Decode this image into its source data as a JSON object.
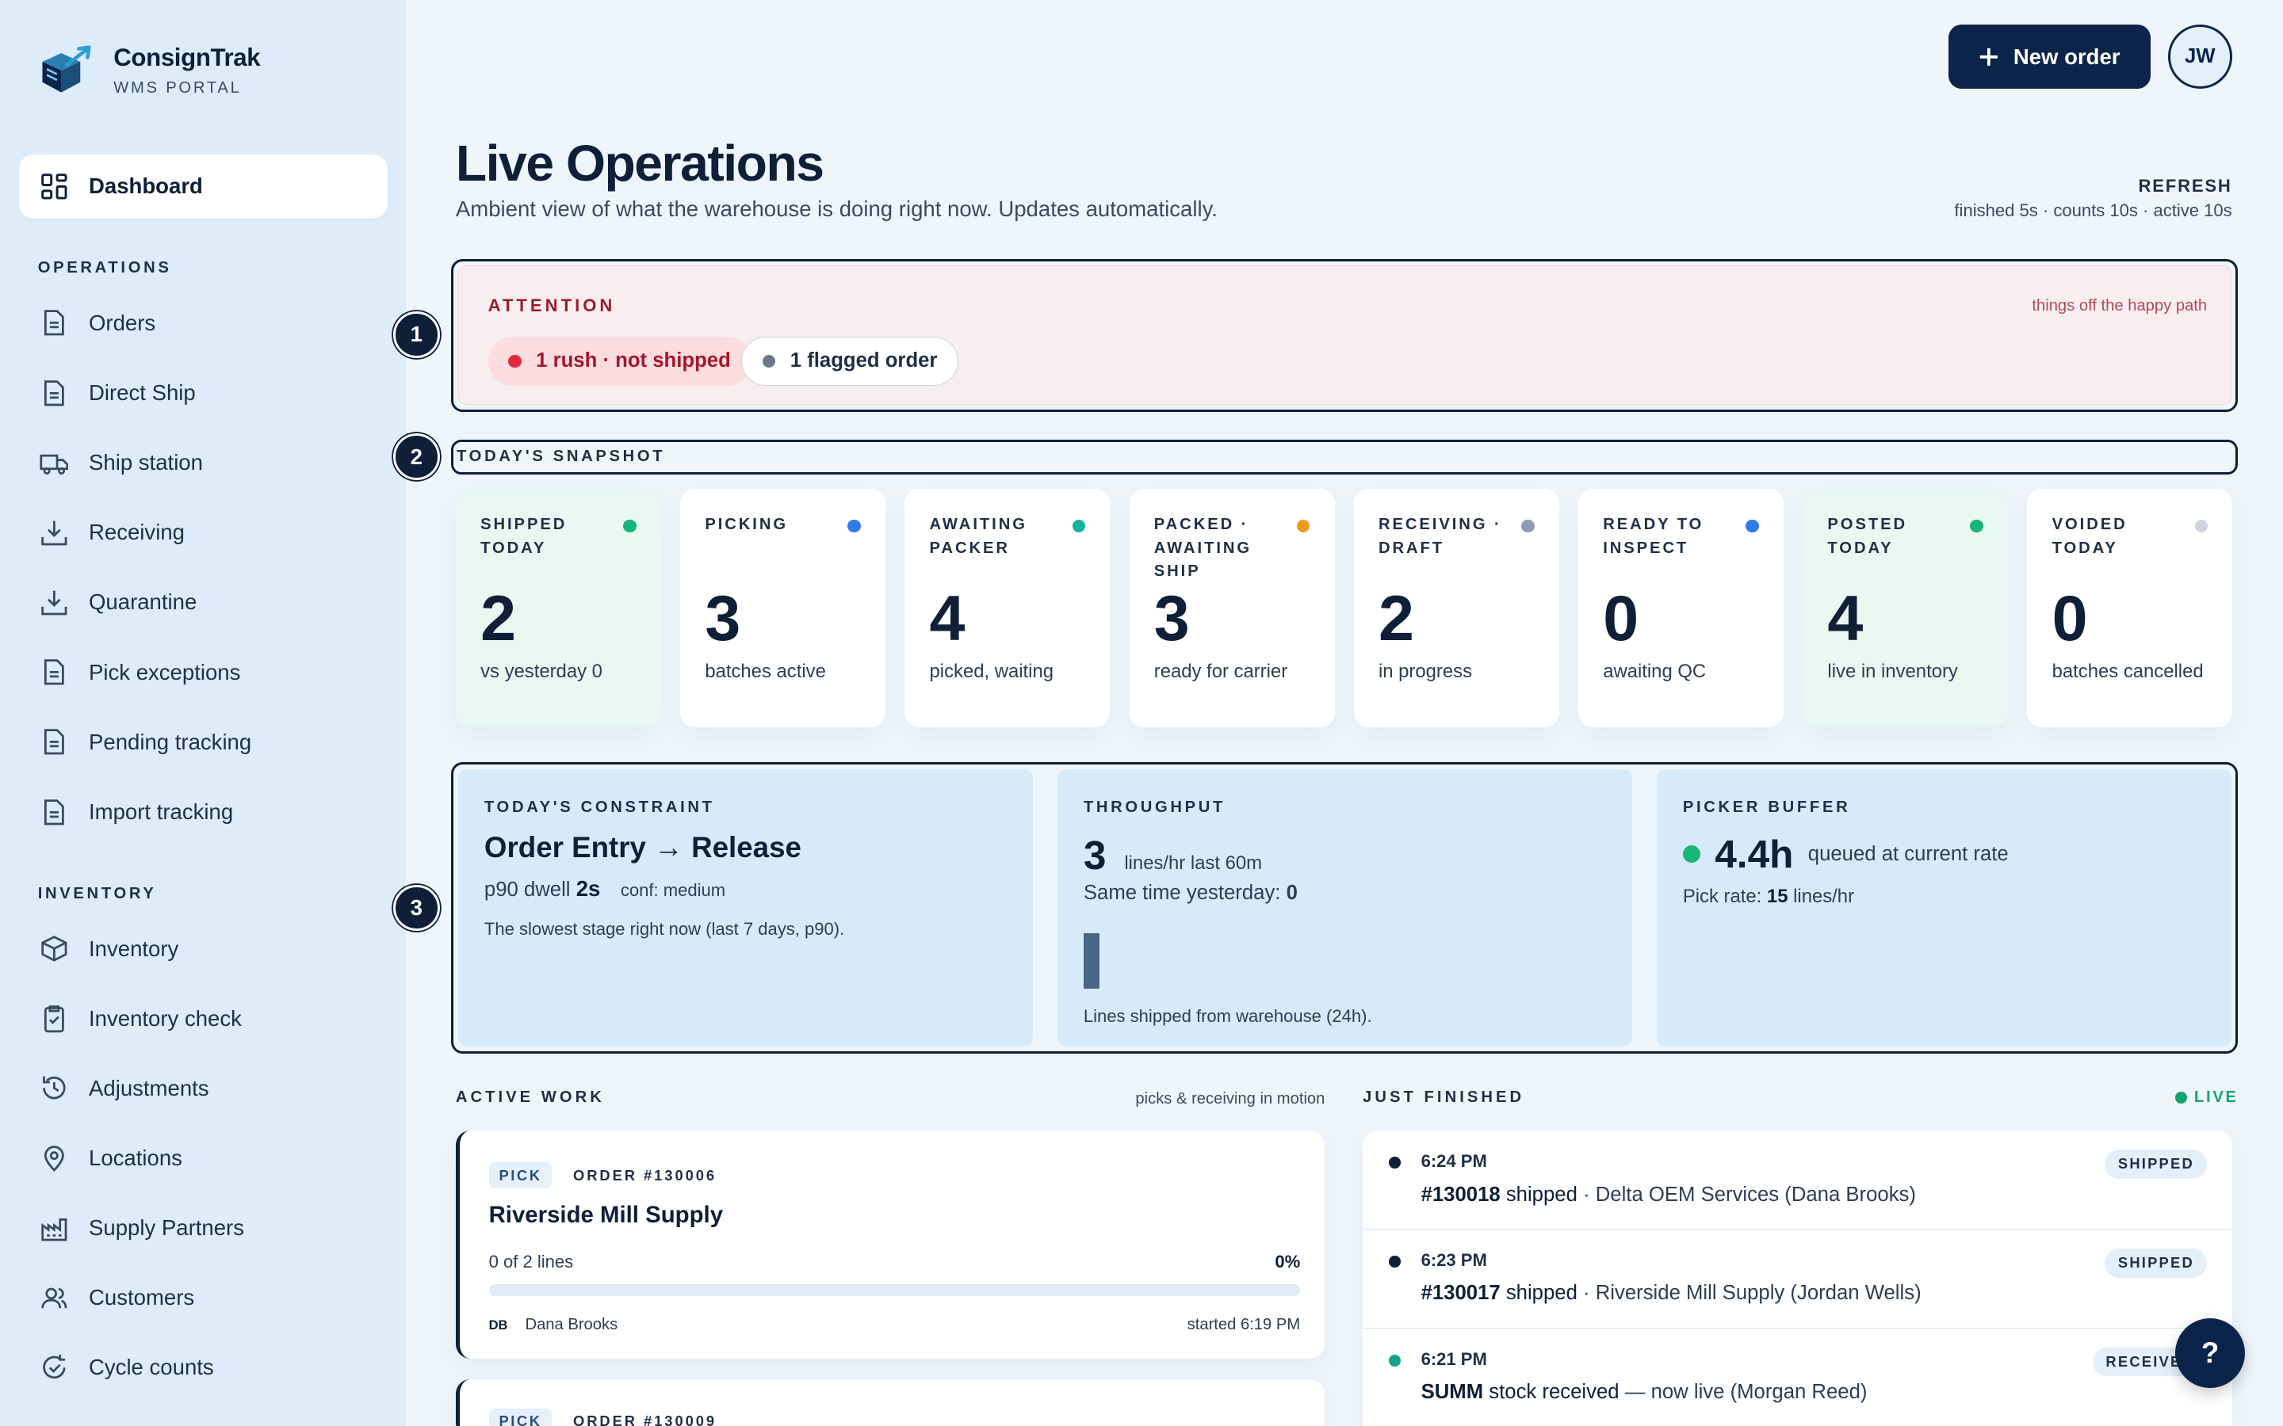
{
  "app": {
    "name": "ConsignTrak",
    "subtitle": "WMS PORTAL"
  },
  "sidebar": {
    "dashboard": "Dashboard",
    "operations_label": "OPERATIONS",
    "operations": [
      {
        "label": "Orders",
        "icon": "document-icon"
      },
      {
        "label": "Direct Ship",
        "icon": "document-icon"
      },
      {
        "label": "Ship station",
        "icon": "truck-icon"
      },
      {
        "label": "Receiving",
        "icon": "download-icon"
      },
      {
        "label": "Quarantine",
        "icon": "download-icon"
      },
      {
        "label": "Pick exceptions",
        "icon": "document-icon"
      },
      {
        "label": "Pending tracking",
        "icon": "document-icon"
      },
      {
        "label": "Import tracking",
        "icon": "document-icon"
      }
    ],
    "inventory_label": "INVENTORY",
    "inventory": [
      {
        "label": "Inventory",
        "icon": "box-icon"
      },
      {
        "label": "Inventory check",
        "icon": "clipboard-icon"
      },
      {
        "label": "Adjustments",
        "icon": "history-icon"
      },
      {
        "label": "Locations",
        "icon": "pin-icon"
      },
      {
        "label": "Supply Partners",
        "icon": "factory-icon"
      },
      {
        "label": "Customers",
        "icon": "users-icon"
      },
      {
        "label": "Cycle counts",
        "icon": "refresh-check-icon"
      }
    ]
  },
  "header": {
    "new_order": "New order",
    "avatar": "JW"
  },
  "page": {
    "title": "Live Operations",
    "subtitle": "Ambient view of what the warehouse is doing right now. Updates automatically.",
    "refresh_label": "REFRESH",
    "refresh_detail": "finished 5s · counts 10s · active 10s"
  },
  "steps": [
    "1",
    "2",
    "3"
  ],
  "attention": {
    "title": "ATTENTION",
    "note": "things off the happy path",
    "rush": "1 rush · not shipped",
    "flagged": "1 flagged order"
  },
  "snapshot": {
    "title": "TODAY'S SNAPSHOT",
    "cards": [
      {
        "label": "SHIPPED TODAY",
        "value": "2",
        "sub": "vs yesterday 0",
        "dot": "#16b57a",
        "tint": "green"
      },
      {
        "label": "PICKING",
        "value": "3",
        "sub": "batches active",
        "dot": "#2f7cf0",
        "tint": "white"
      },
      {
        "label": "AWAITING PACKER",
        "value": "4",
        "sub": "picked, waiting",
        "dot": "#14b39a",
        "tint": "white"
      },
      {
        "label": "PACKED · AWAITING SHIP",
        "value": "3",
        "sub": "ready for carrier",
        "dot": "#f19a1a",
        "tint": "white"
      },
      {
        "label": "RECEIVING · DRAFT",
        "value": "2",
        "sub": "in progress",
        "dot": "#8f9bb3",
        "tint": "white"
      },
      {
        "label": "READY TO INSPECT",
        "value": "0",
        "sub": "awaiting QC",
        "dot": "#2f7cf0",
        "tint": "white"
      },
      {
        "label": "POSTED TODAY",
        "value": "4",
        "sub": "live in inventory",
        "dot": "#16b57a",
        "tint": "green"
      },
      {
        "label": "VOIDED TODAY",
        "value": "0",
        "sub": "batches cancelled",
        "dot": "#cdd4de",
        "tint": "white"
      }
    ]
  },
  "constraint": {
    "label": "TODAY'S CONSTRAINT",
    "title": "Order Entry → Release",
    "dwell_prefix": "p90 dwell",
    "dwell_value": "2s",
    "conf": "conf: medium",
    "note": "The slowest stage right now (last 7 days, p90)."
  },
  "throughput": {
    "label": "THROUGHPUT",
    "value": "3",
    "unit": "lines/hr last 60m",
    "yesterday_prefix": "Same time yesterday:",
    "yesterday_value": "0",
    "footer": "Lines shipped from warehouse (24h)."
  },
  "buffer": {
    "label": "PICKER BUFFER",
    "value": "4.4h",
    "desc": "queued at current rate",
    "rate_prefix": "Pick rate:",
    "rate_value": "15",
    "rate_unit": "lines/hr"
  },
  "active_work": {
    "label": "ACTIVE WORK",
    "note": "picks & receiving in motion",
    "items": [
      {
        "tag": "PICK",
        "order": "ORDER #130006",
        "customer": "Riverside Mill Supply",
        "progress": "0 of 2 lines",
        "percent": "0%",
        "initials": "DB",
        "assignee": "Dana Brooks",
        "started": "started 6:19 PM"
      },
      {
        "tag": "PICK",
        "order": "ORDER #130009"
      }
    ]
  },
  "just_finished": {
    "label": "JUST FINISHED",
    "live": "LIVE",
    "items": [
      {
        "time": "6:24 PM",
        "ref": "#130018",
        "verb": "shipped",
        "detail": "· Delta OEM Services (Dana Brooks)",
        "badge": "SHIPPED",
        "dot": "#0f1f38"
      },
      {
        "time": "6:23 PM",
        "ref": "#130017",
        "verb": "shipped",
        "detail": "· Riverside Mill Supply (Jordan Wells)",
        "badge": "SHIPPED",
        "dot": "#0f1f38"
      },
      {
        "time": "6:21 PM",
        "ref": "SUMM",
        "verb": "stock received",
        "detail": "— now live (Morgan Reed)",
        "badge": "RECEIVED",
        "dot": "#14a38a"
      }
    ]
  },
  "help": "?"
}
